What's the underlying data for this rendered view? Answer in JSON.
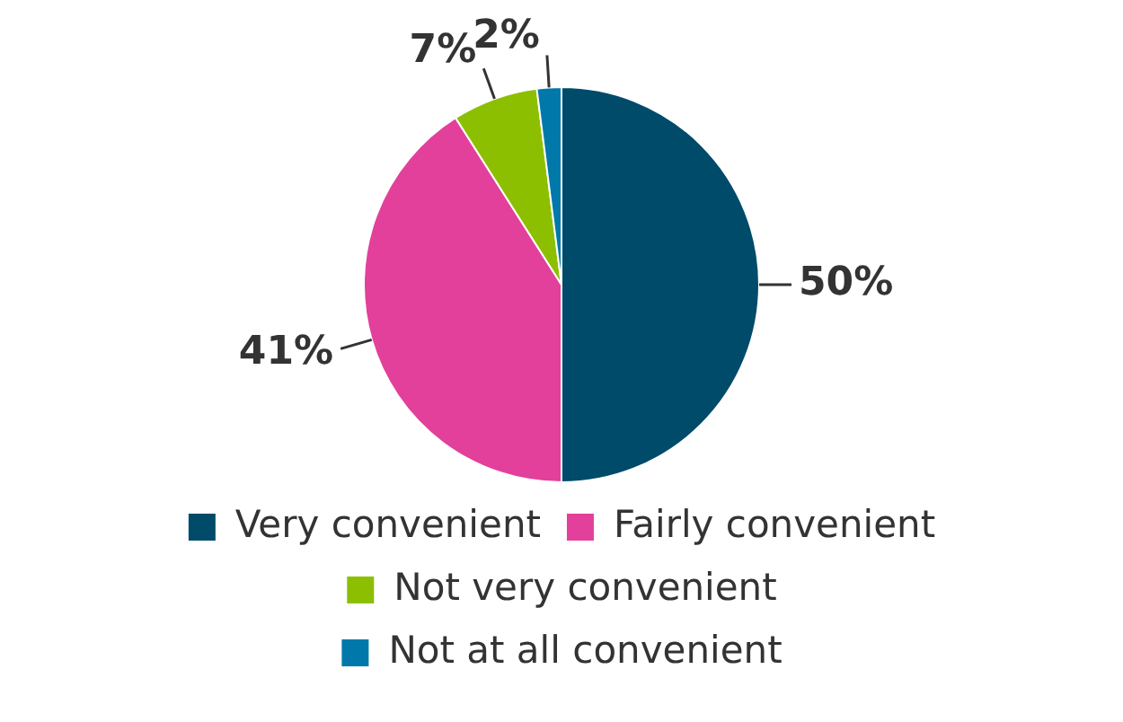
{
  "chart_data": {
    "type": "pie",
    "categories": [
      "Very convenient",
      "Fairly convenient",
      "Not very convenient",
      "Not at all convenient"
    ],
    "values": [
      50,
      41,
      7,
      2
    ],
    "value_labels": [
      "50%",
      "41%",
      "7%",
      "2%"
    ],
    "colors": [
      "#004a6a",
      "#e2409a",
      "#8cbf00",
      "#0079aa"
    ],
    "legend": "bottom"
  }
}
